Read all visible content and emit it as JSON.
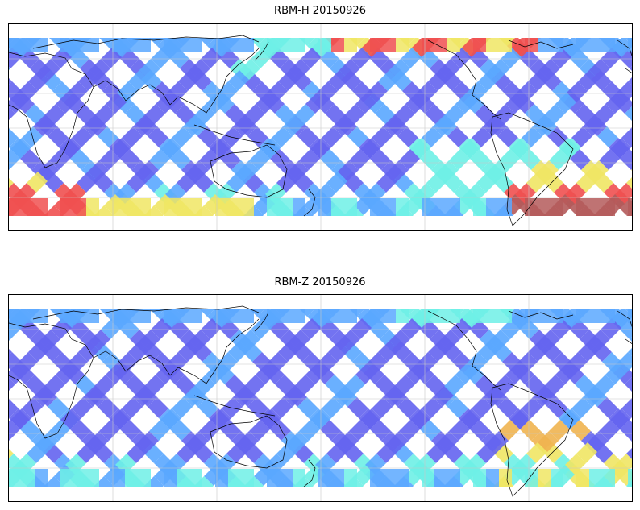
{
  "panels": [
    {
      "title": "RBM-H 20150926",
      "variant": "H"
    },
    {
      "title": "RBM-Z 20150926",
      "variant": "Z"
    }
  ],
  "colors": {
    "low": "#6464f0",
    "mid_low": "#5aa8ff",
    "mid": "#6ef0e6",
    "mid_high": "#f0e664",
    "high": "#f05050",
    "very_high": "#b45a5a",
    "coastline": "#000000",
    "grid": "#c8c8c8"
  }
}
